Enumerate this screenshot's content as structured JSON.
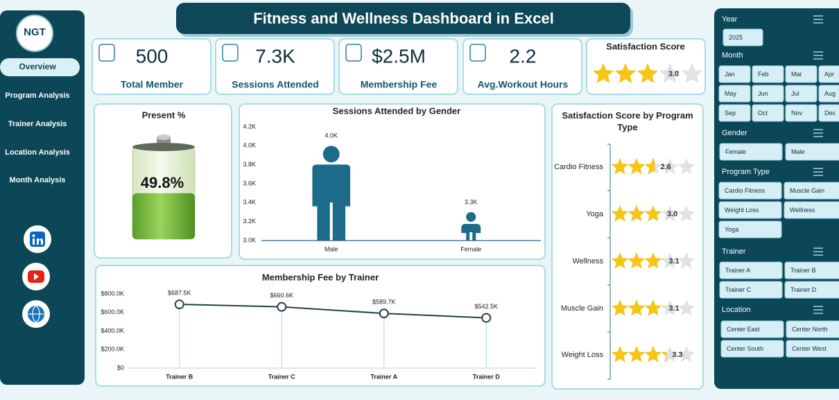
{
  "header": {
    "title": "Fitness and Wellness Dashboard in Excel"
  },
  "logo": {
    "text": "NGT"
  },
  "nav": [
    "Overview",
    "Program Analysis",
    "Trainer Analysis",
    "Location Analysis",
    "Month Analysis"
  ],
  "kpis": [
    {
      "value": "500",
      "label": "Total Member"
    },
    {
      "value": "7.3K",
      "label": "Sessions Attended"
    },
    {
      "value": "$2.5M",
      "label": "Membership Fee"
    },
    {
      "value": "2.2",
      "label": "Avg.Workout Hours"
    }
  ],
  "chart_data": [
    {
      "type": "rating",
      "title": "Satisfaction Score",
      "values": [
        3.0
      ],
      "value_labels": [
        "3.0"
      ],
      "xlim": [
        0,
        5
      ],
      "color": "#f5c518"
    },
    {
      "type": "battery",
      "title": "Present %",
      "values": [
        49.8
      ],
      "value_labels": [
        "49.8%"
      ],
      "ylim": [
        0,
        100
      ],
      "color": "#7cc242"
    },
    {
      "type": "pictograph",
      "title": "Sessions Attended by Gender",
      "categories": [
        "Male",
        "Female"
      ],
      "values": [
        4000,
        3300
      ],
      "value_labels": [
        "4.0K",
        "3.3K"
      ],
      "color": "#1c6b8a",
      "ylim": [
        3000,
        4200
      ],
      "yticks": [
        {
          "value": 3000,
          "label": "3.0K"
        },
        {
          "value": 3200,
          "label": "3.2K"
        },
        {
          "value": 3400,
          "label": "3.4K"
        },
        {
          "value": 3600,
          "label": "3.6K"
        },
        {
          "value": 3800,
          "label": "3.8K"
        },
        {
          "value": 4000,
          "label": "4.0K"
        },
        {
          "value": 4200,
          "label": "4.2K"
        }
      ]
    },
    {
      "type": "line",
      "title": "Membership Fee by Trainer",
      "categories": [
        "Trainer B",
        "Trainer C",
        "Trainer A",
        "Trainer D"
      ],
      "values": [
        687500,
        660600,
        589700,
        542500
      ],
      "value_labels": [
        "$687.5K",
        "$660.6K",
        "$589.7K",
        "$542.5K"
      ],
      "color": "#1f3f4a",
      "ylim": [
        0,
        800000
      ],
      "yticks": [
        {
          "value": 0,
          "label": "$0"
        },
        {
          "value": 200000,
          "label": "$200.0K"
        },
        {
          "value": 400000,
          "label": "$400.0K"
        },
        {
          "value": 600000,
          "label": "$600.0K"
        },
        {
          "value": 800000,
          "label": "$800.0K"
        }
      ]
    },
    {
      "type": "rating",
      "title": "Satisfaction Score by Program Type",
      "categories": [
        "Cardio Fitness",
        "Yoga",
        "Wellness",
        "Muscle Gain",
        "Weight Loss"
      ],
      "values": [
        2.6,
        3.0,
        3.1,
        3.1,
        3.3
      ],
      "value_labels": [
        "2.6",
        "3.0",
        "3.1",
        "3.1",
        "3.3"
      ],
      "xlim": [
        0,
        5
      ],
      "color": "#f5c518"
    }
  ],
  "slicers": [
    {
      "title": "Year",
      "items": [
        "2025"
      ]
    },
    {
      "title": "Month",
      "items": [
        "Jan",
        "Feb",
        "Mar",
        "Apr",
        "May",
        "Jun",
        "Jul",
        "Aug",
        "Sep",
        "Oct",
        "Nov",
        "Dec"
      ]
    },
    {
      "title": "Gender",
      "items": [
        "Female",
        "Male"
      ]
    },
    {
      "title": "Program Type",
      "items": [
        "Cardio Fitness",
        "Muscle Gain",
        "Weight Loss",
        "Wellness",
        "Yoga"
      ]
    },
    {
      "title": "Trainer",
      "items": [
        "Trainer A",
        "Trainer B",
        "Trainer C",
        "Trainer D"
      ]
    },
    {
      "title": "Location",
      "items": [
        "Center East",
        "Center North",
        "Center South",
        "Center West"
      ]
    }
  ]
}
